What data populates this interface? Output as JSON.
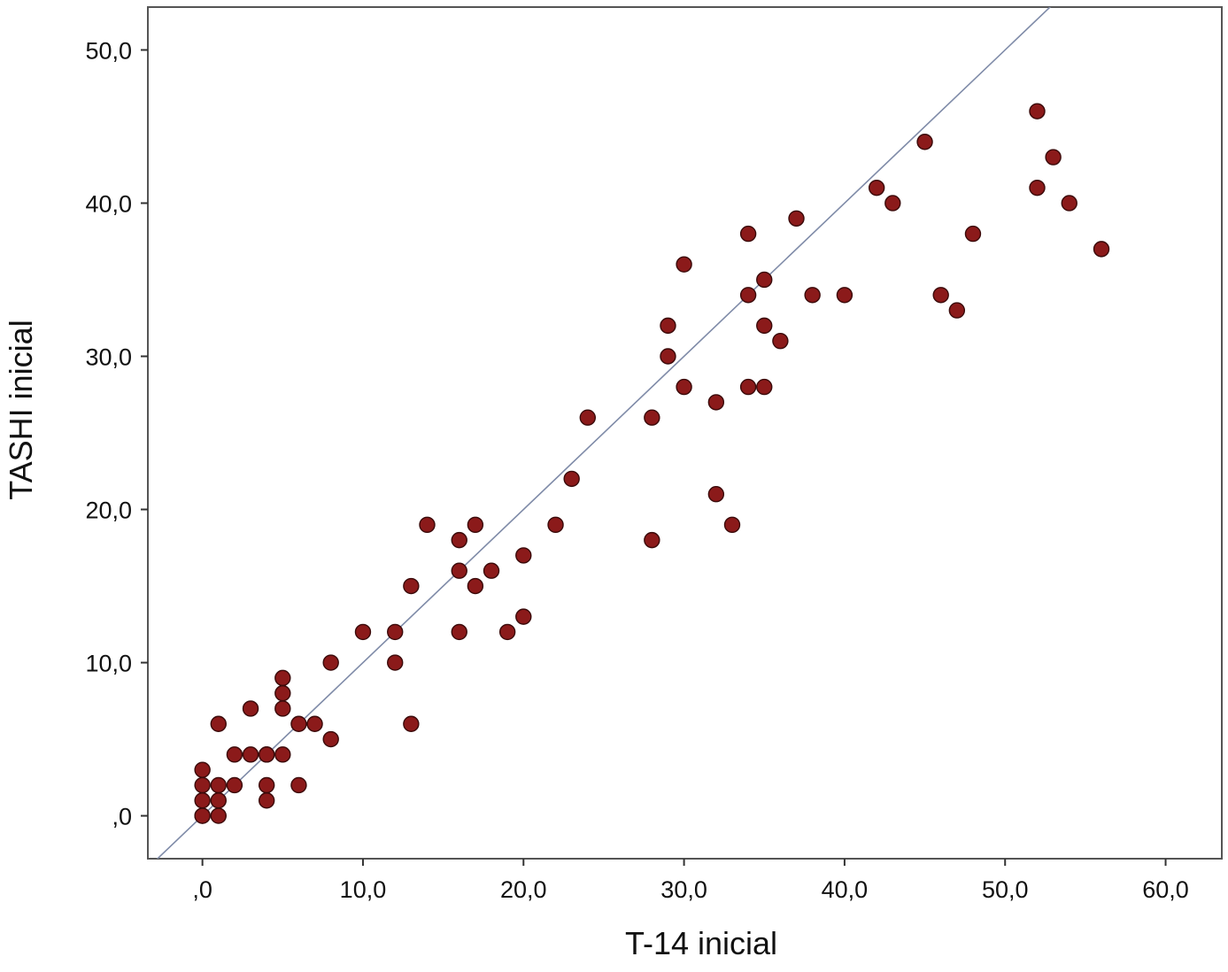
{
  "chart_data": {
    "type": "scatter",
    "xlabel": "T-14 inicial",
    "ylabel": "TASHI inicial",
    "xlim": [
      -3.4,
      63.5
    ],
    "ylim": [
      -2.8,
      52.8
    ],
    "xticks": [
      0,
      10,
      20,
      30,
      40,
      50,
      60
    ],
    "yticks": [
      0,
      10,
      20,
      30,
      40,
      50
    ],
    "xtick_labels": [
      ",0",
      "10,0",
      "20,0",
      "30,0",
      "40,0",
      "50,0",
      "60,0"
    ],
    "ytick_labels": [
      ",0",
      "10,0",
      "20,0",
      "30,0",
      "40,0",
      "50,0"
    ],
    "grid": false,
    "reference_line": "identity (y = x)",
    "marker_color": "#8b1a1a",
    "line_color": "#7f8ba8",
    "series": [
      {
        "x": [
          0,
          0,
          0,
          0,
          0,
          1,
          1,
          1,
          1,
          2,
          2,
          3,
          3,
          4,
          4,
          4,
          4,
          5,
          5,
          5,
          5,
          6,
          6,
          7,
          8,
          8,
          10,
          12,
          12,
          13,
          13,
          14,
          16,
          16,
          16,
          17,
          17,
          18,
          19,
          20,
          20,
          22,
          23,
          24,
          28,
          28,
          29,
          29,
          30,
          30,
          32,
          32,
          33,
          34,
          34,
          34,
          35,
          35,
          35,
          36,
          37,
          38,
          40,
          42,
          43,
          45,
          46,
          47,
          48,
          52,
          52,
          53,
          54,
          56
        ],
        "y": [
          0,
          1,
          2,
          3,
          0,
          0,
          1,
          2,
          6,
          2,
          4,
          4,
          7,
          1,
          2,
          4,
          4,
          4,
          7,
          8,
          9,
          2,
          6,
          6,
          5,
          10,
          12,
          10,
          12,
          6,
          15,
          19,
          12,
          16,
          18,
          15,
          19,
          16,
          12,
          13,
          17,
          19,
          22,
          26,
          18,
          26,
          30,
          32,
          28,
          36,
          21,
          27,
          19,
          28,
          34,
          38,
          28,
          32,
          35,
          31,
          39,
          34,
          34,
          41,
          40,
          44,
          34,
          33,
          38,
          41,
          46,
          43,
          40,
          37
        ]
      }
    ]
  }
}
